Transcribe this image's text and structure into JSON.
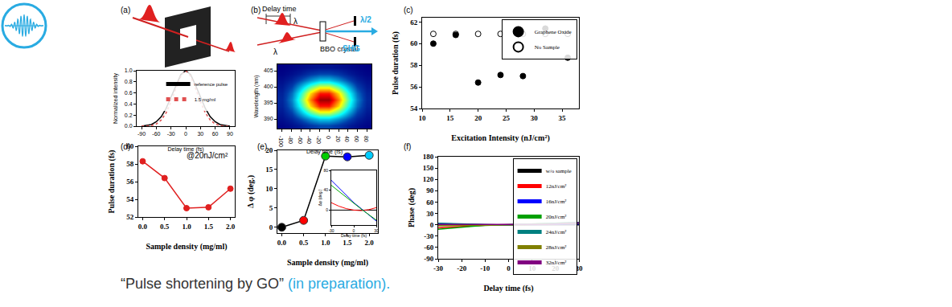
{
  "chart_data": [
    {
      "panel": "(a)",
      "type": "line",
      "xlabel": "Delay time (fs)",
      "ylabel": "Normalized intensity",
      "x": [
        -90,
        -80,
        -70,
        -60,
        -50,
        -40,
        -30,
        -20,
        -10,
        0,
        10,
        20,
        30,
        40,
        50,
        60,
        70,
        80,
        90
      ],
      "series": [
        {
          "name": "reference pulse",
          "color": "#000000",
          "line_style": "solid",
          "values": [
            0.0,
            0.01,
            0.03,
            0.08,
            0.17,
            0.32,
            0.52,
            0.74,
            0.93,
            1.0,
            0.93,
            0.74,
            0.52,
            0.32,
            0.17,
            0.08,
            0.03,
            0.01,
            0.0
          ]
        },
        {
          "name": "1.5 mg/ml",
          "color": "#e05050",
          "line_style": "dot",
          "values": [
            0.0,
            0.0,
            0.01,
            0.04,
            0.11,
            0.24,
            0.44,
            0.68,
            0.9,
            1.0,
            0.9,
            0.68,
            0.44,
            0.24,
            0.11,
            0.04,
            0.01,
            0.0,
            0.0
          ]
        }
      ],
      "xlim": [
        -100,
        100
      ],
      "xticks": [
        -90,
        -60,
        -30,
        0,
        30,
        60,
        90
      ],
      "ylim": [
        0,
        1
      ],
      "yticks": [
        {
          "value": 0,
          "label": "0.0"
        },
        {
          "value": 0.2,
          "label": "0.2"
        },
        {
          "value": 0.4,
          "label": "0.4"
        },
        {
          "value": 0.6,
          "label": "0.6"
        },
        {
          "value": 0.8,
          "label": "0.8"
        },
        {
          "value": 1,
          "label": "1.0"
        }
      ],
      "legend": "upper right"
    },
    {
      "panel": "(b)",
      "type": "heatmap",
      "xlabel": "Delay time (fs)",
      "ylabel": "Wavelength (nm)",
      "x": [
        -100,
        -80,
        -60,
        -40,
        -20,
        0,
        20,
        40,
        60,
        80
      ],
      "y": [
        388,
        390,
        392,
        394,
        396,
        398,
        400,
        402,
        404,
        406
      ],
      "z": [
        [
          0.01,
          0.03,
          0.06,
          0.11,
          0.14,
          0.14,
          0.11,
          0.06,
          0.03,
          0.01
        ],
        [
          0.03,
          0.07,
          0.15,
          0.24,
          0.31,
          0.31,
          0.24,
          0.15,
          0.07,
          0.03
        ],
        [
          0.05,
          0.13,
          0.28,
          0.46,
          0.59,
          0.59,
          0.46,
          0.28,
          0.13,
          0.05
        ],
        [
          0.07,
          0.19,
          0.4,
          0.66,
          0.85,
          0.85,
          0.66,
          0.4,
          0.19,
          0.07
        ],
        [
          0.08,
          0.22,
          0.46,
          0.75,
          0.97,
          0.97,
          0.75,
          0.46,
          0.22,
          0.08
        ],
        [
          0.07,
          0.19,
          0.4,
          0.66,
          0.85,
          0.85,
          0.66,
          0.4,
          0.19,
          0.07
        ],
        [
          0.05,
          0.13,
          0.28,
          0.46,
          0.59,
          0.59,
          0.46,
          0.28,
          0.13,
          0.05
        ],
        [
          0.03,
          0.07,
          0.15,
          0.24,
          0.31,
          0.31,
          0.24,
          0.15,
          0.07,
          0.03
        ],
        [
          0.01,
          0.03,
          0.06,
          0.11,
          0.14,
          0.14,
          0.11,
          0.06,
          0.03,
          0.01
        ],
        [
          0.0,
          0.01,
          0.02,
          0.03,
          0.04,
          0.04,
          0.03,
          0.02,
          0.01,
          0.0
        ]
      ],
      "zlim": [
        0,
        1
      ],
      "xlim": [
        -110,
        90
      ],
      "xticks": [
        -100,
        -80,
        -60,
        -40,
        -20,
        0,
        20,
        40,
        60,
        80
      ],
      "ylim": [
        387,
        407
      ],
      "yticks": [
        390,
        395,
        400,
        405
      ]
    },
    {
      "panel": "(c)",
      "type": "scatter",
      "xlabel": "Excitation Intensity (nJ/cm²)",
      "ylabel": "Pulse duration (fs)",
      "x": [
        12,
        16,
        20,
        24,
        28,
        32,
        36
      ],
      "series": [
        {
          "name": "Graphene Oxide",
          "color": "#000000",
          "marker": "circle",
          "values": [
            60.0,
            60.8,
            56.4,
            57.1,
            57.0,
            61.4,
            58.7
          ]
        },
        {
          "name": "No Sample",
          "color": "#000000",
          "marker": "circle-open",
          "values": [
            60.9,
            60.9,
            60.9,
            60.9,
            60.9,
            60.9,
            60.9
          ]
        }
      ],
      "xlim": [
        10,
        38
      ],
      "xticks": [
        10,
        15,
        20,
        25,
        30,
        35
      ],
      "ylim": [
        54,
        62.4
      ],
      "yticks": [
        54,
        56,
        58,
        60,
        62
      ],
      "legend": "upper right"
    },
    {
      "panel": "(d)",
      "type": "line",
      "xlabel": "Sample density (mg/ml)",
      "ylabel": "Pulse duration (fs)",
      "annotations": [
        "@20nJ/cm²"
      ],
      "x": [
        0,
        0.5,
        1,
        1.5,
        2
      ],
      "series": [
        {
          "color": "#e02020",
          "marker": "circle",
          "line_style": "solid",
          "values": [
            58.3,
            56.4,
            53.0,
            53.1,
            55.2
          ]
        }
      ],
      "xlim": [
        -0.1,
        2.1
      ],
      "xticks": [
        {
          "value": 0,
          "label": "0.0"
        },
        {
          "value": 0.5,
          "label": "0.5"
        },
        {
          "value": 1,
          "label": "1.0"
        },
        {
          "value": 1.5,
          "label": "1.5"
        },
        {
          "value": 2,
          "label": "2.0"
        }
      ],
      "ylim": [
        52,
        60
      ],
      "yticks": [
        52,
        54,
        56,
        58,
        60
      ]
    },
    {
      "panel": "(e)",
      "type": "scatter",
      "xlabel": "Sample density (mg/ml)",
      "ylabel": "Δ φ (deg.)",
      "x": [
        0,
        0.5,
        1,
        1.5,
        2
      ],
      "values": [
        0,
        1.8,
        18.5,
        18.3,
        18.7
      ],
      "color": "#000000",
      "line_style": "solid",
      "colors": [
        "#000000",
        "#ff0000",
        "#00cc00",
        "#0000ff",
        "#00ccff"
      ],
      "xlim": [
        -0.1,
        2.2
      ],
      "xticks": [
        {
          "value": 0,
          "label": "0.0"
        },
        {
          "value": 0.5,
          "label": "0.5"
        },
        {
          "value": 1,
          "label": "1.0"
        },
        {
          "value": 1.5,
          "label": "1.5"
        },
        {
          "value": 2,
          "label": "2.0"
        }
      ],
      "ylim": [
        -1.5,
        20
      ],
      "yticks": [
        0,
        5,
        10,
        15,
        20
      ],
      "inset": {
        "type": "line",
        "xlabel": "Delay time (fs)",
        "ylabel": "Δφ (deg.)",
        "x": [
          -30,
          -20,
          -10,
          0,
          10,
          20,
          30
        ],
        "series": [
          {
            "color": "#000000",
            "values": [
              0,
              0,
              0,
              0,
              0,
              0,
              0
            ]
          },
          {
            "color": "#ff0000",
            "values": [
              15,
              8,
              3,
              0,
              -1,
              1,
              5
            ]
          },
          {
            "color": "#0000ff",
            "values": [
              60,
              45,
              30,
              15,
              3,
              -10,
              -22
            ]
          },
          {
            "color": "#00aa00",
            "values": [
              50,
              38,
              26,
              13,
              2,
              -9,
              -20
            ]
          }
        ],
        "xlim": [
          -30,
          30
        ],
        "xticks": [
          -30,
          0,
          30
        ],
        "ylim": [
          -30,
          80
        ],
        "yticks": [
          0,
          40,
          80
        ]
      }
    },
    {
      "panel": "(f)",
      "type": "line",
      "xlabel": "Delay time (fs)",
      "ylabel": "Phase (deg)",
      "x": [
        -30,
        -25,
        -20,
        -15,
        -10,
        -5,
        0,
        5,
        10,
        15,
        20,
        25,
        30
      ],
      "series": [
        {
          "name": "w/o sample",
          "color": "#000000",
          "values": [
            0,
            0,
            0,
            0,
            0,
            0,
            0,
            0,
            0,
            0,
            0,
            0,
            0
          ]
        },
        {
          "name": "12nJ/cm²",
          "color": "#ff0000",
          "values": [
            -8,
            -6,
            -4,
            -2,
            -1,
            0,
            0,
            0,
            1,
            2,
            3,
            3,
            4
          ]
        },
        {
          "name": "16nJ/cm²",
          "color": "#0000ff",
          "values": [
            3,
            2,
            1,
            1,
            0,
            0,
            0,
            0,
            0,
            1,
            1,
            2,
            2
          ]
        },
        {
          "name": "20nJ/cm²",
          "color": "#00a000",
          "values": [
            -12,
            -9,
            -6,
            -4,
            -2,
            -1,
            0,
            1,
            2,
            3,
            4,
            5,
            6
          ]
        },
        {
          "name": "24nJ/cm²",
          "color": "#008080",
          "values": [
            4,
            3,
            2,
            1,
            1,
            0,
            0,
            1,
            2,
            3,
            4,
            5,
            6
          ]
        },
        {
          "name": "28nJ/cm²",
          "color": "#808000",
          "values": [
            -3,
            -2,
            -2,
            -1,
            -1,
            0,
            0,
            0,
            1,
            1,
            2,
            3,
            4
          ]
        },
        {
          "name": "32nJ/cm²",
          "color": "#800080",
          "values": [
            1,
            1,
            0,
            0,
            0,
            0,
            0,
            0,
            0,
            1,
            2,
            4,
            5
          ]
        }
      ],
      "xlim": [
        -30,
        30
      ],
      "xticks": [
        -30,
        -20,
        -10,
        0,
        10,
        20,
        30
      ],
      "ylim": [
        -90,
        180
      ],
      "yticks": [
        -90,
        -60,
        -30,
        0,
        30,
        60,
        90,
        120,
        150,
        180
      ],
      "legend": "upper right"
    }
  ],
  "diagram_b": {
    "delay": "Delay time",
    "lambda_top": "λ",
    "lambda_bottom": "λ",
    "crystal": "BBO crystal",
    "shg": "SHG",
    "half": "λ/2"
  },
  "caption": {
    "quote": "“Pulse shortening by GO”",
    "note": "(in preparation)."
  }
}
